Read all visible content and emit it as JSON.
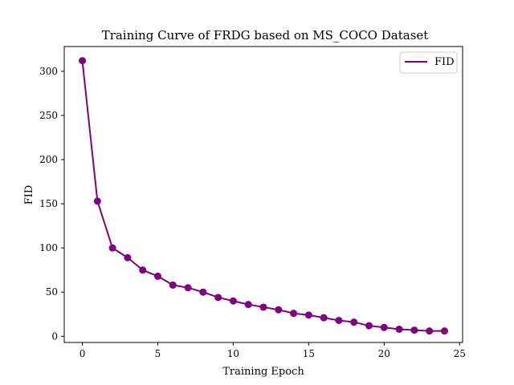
{
  "chart_data": {
    "type": "line",
    "title": "Training Curve of FRDG based on MS_COCO Dataset",
    "xlabel": "Training Epoch",
    "ylabel": "FID",
    "xlim": [
      -1.2,
      25.2
    ],
    "ylim": [
      -7,
      328
    ],
    "xticks": [
      0,
      5,
      10,
      15,
      20,
      25
    ],
    "yticks": [
      0,
      50,
      100,
      150,
      200,
      250,
      300
    ],
    "legend_position": "top-right",
    "grid": false,
    "series": [
      {
        "name": "FID",
        "color": "#800080",
        "marker": "circle",
        "x": [
          0,
          1,
          2,
          3,
          4,
          5,
          6,
          7,
          8,
          9,
          10,
          11,
          12,
          13,
          14,
          15,
          16,
          17,
          18,
          19,
          20,
          21,
          22,
          23,
          24
        ],
        "values": [
          312,
          153,
          100,
          89,
          75,
          68,
          58,
          55,
          50,
          44,
          40,
          36,
          33,
          30,
          26,
          24,
          21,
          18,
          16,
          12,
          10,
          8,
          7,
          6,
          6
        ]
      }
    ]
  }
}
